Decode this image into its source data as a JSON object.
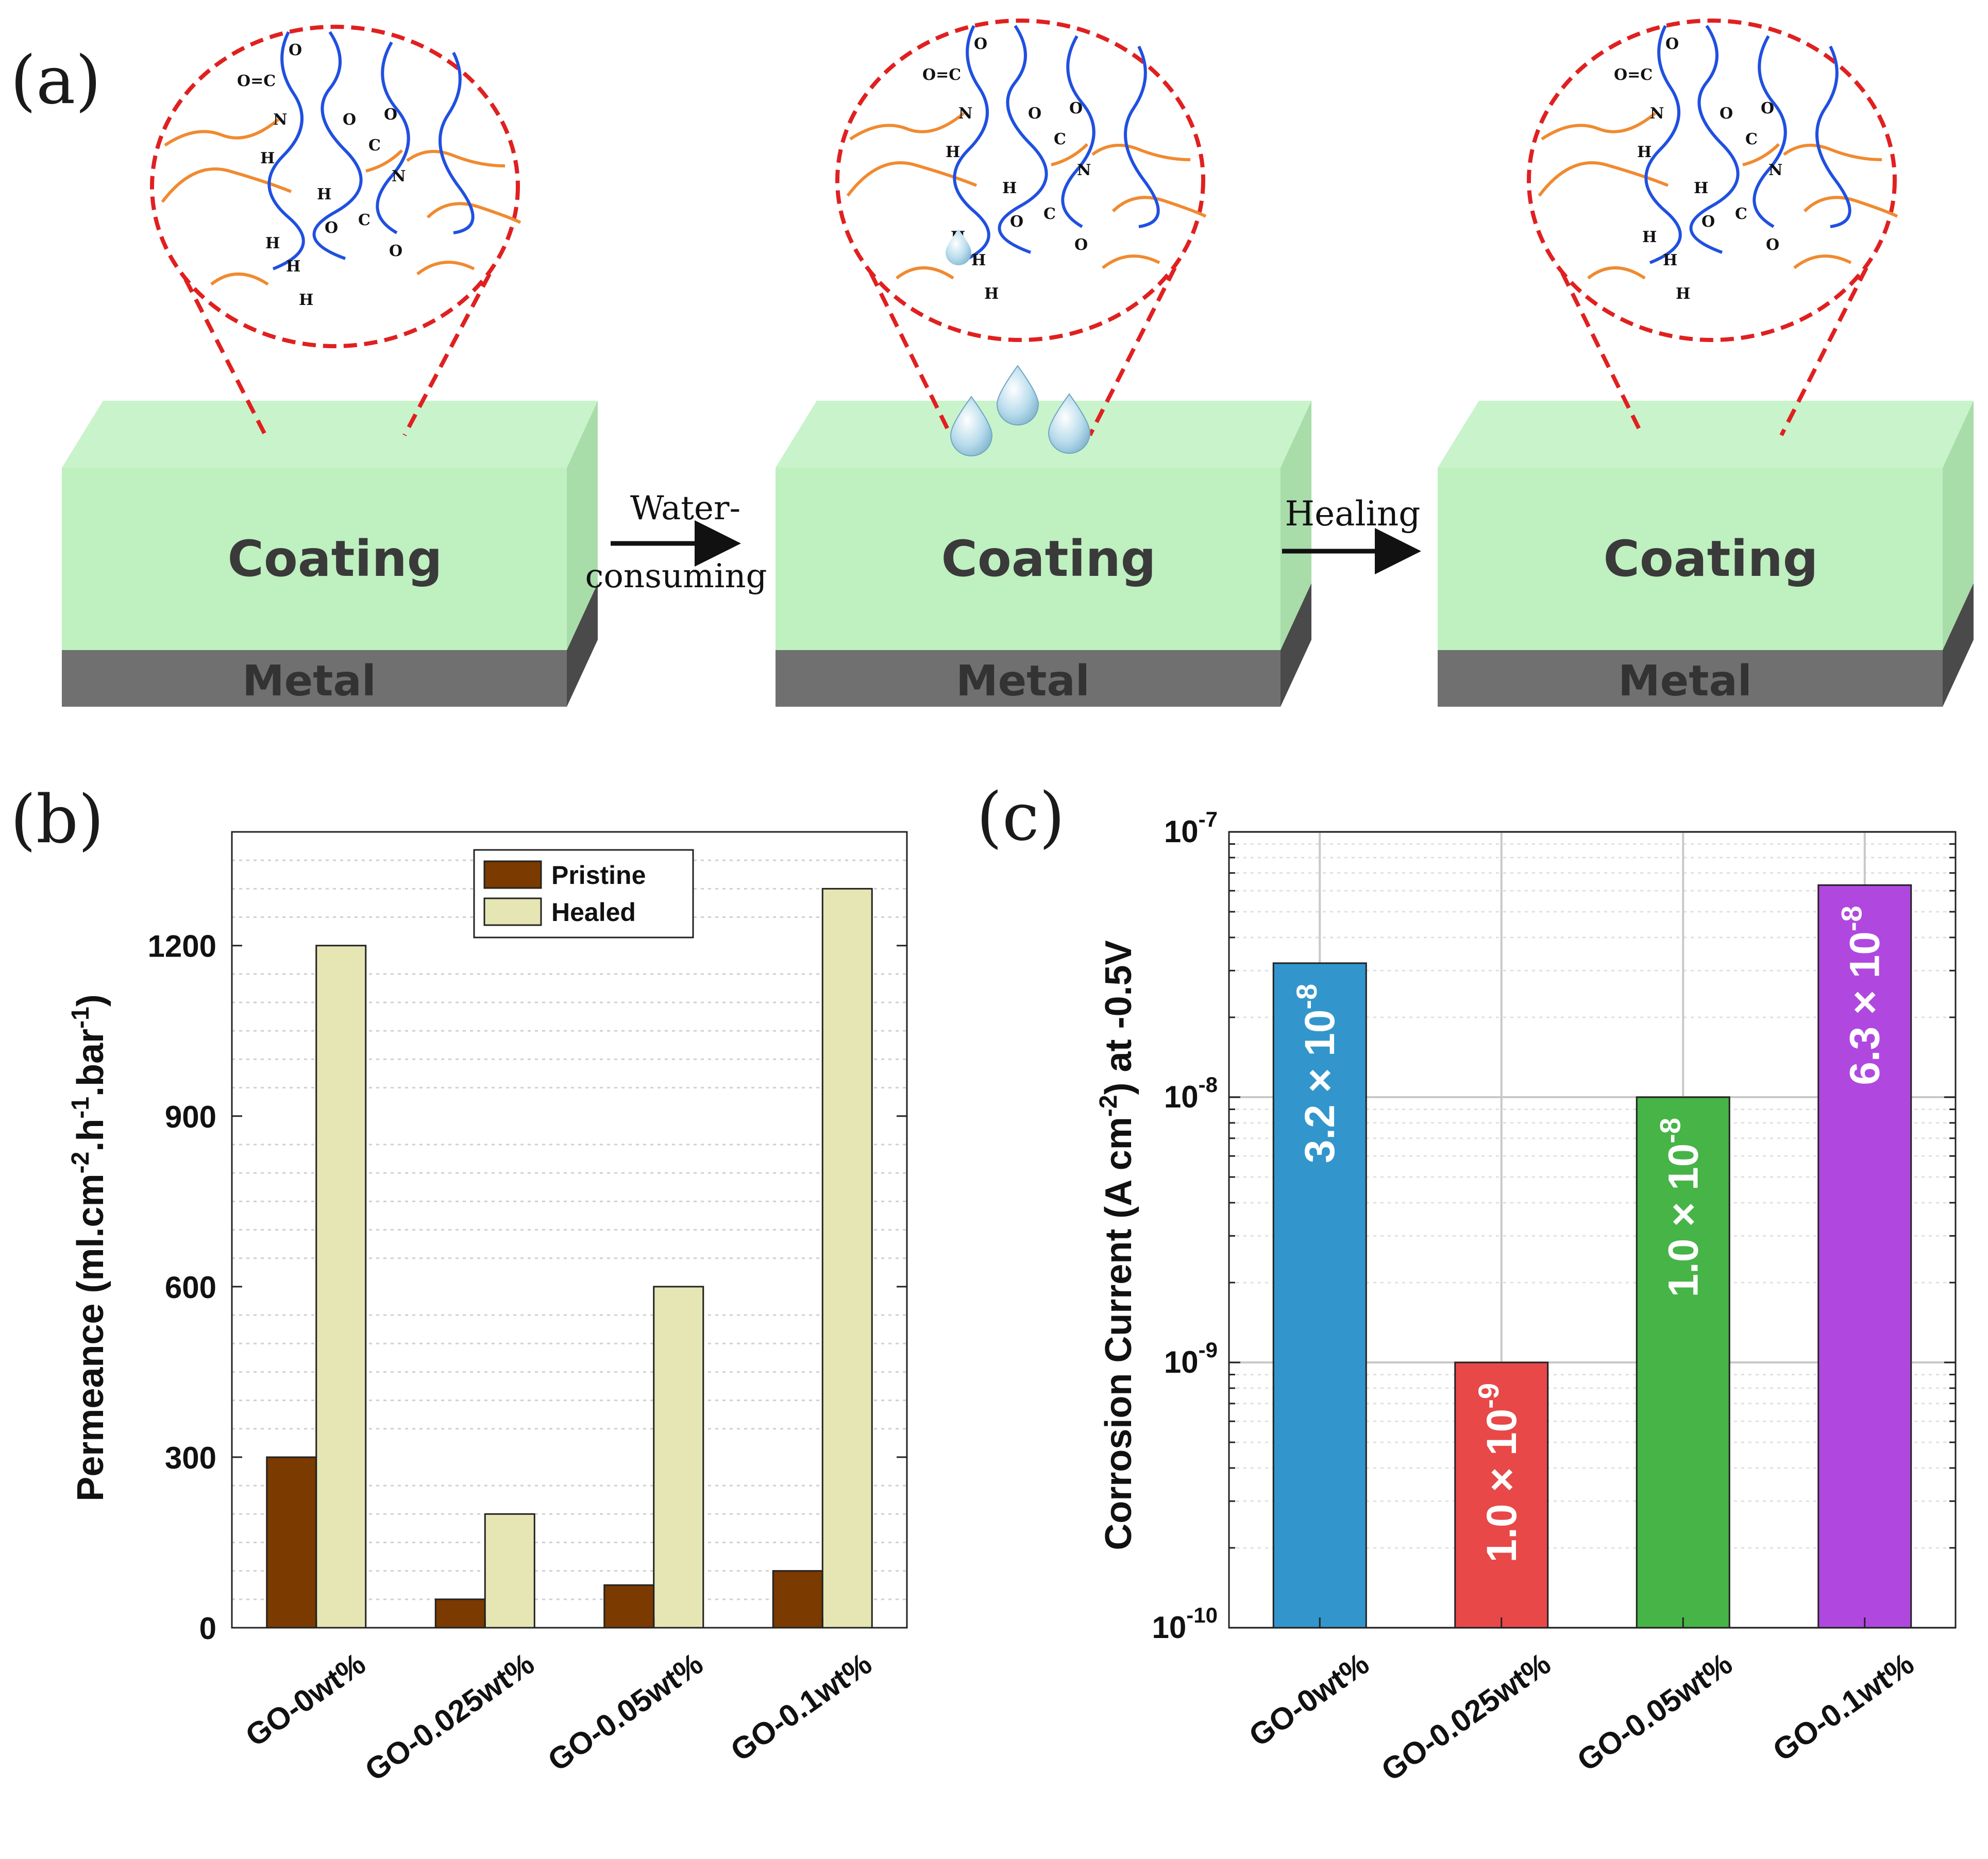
{
  "panels": {
    "a": "(a)",
    "b": "(b)",
    "c": "(c)"
  },
  "schematic": {
    "coating_label": "Coating",
    "metal_label": "Metal",
    "arrow1_line1": "Water-",
    "arrow1_line2": "consuming",
    "arrow2_label": "Healing",
    "colors": {
      "coating": "#bff0c0",
      "metal": "#707070",
      "circle": "#e02020",
      "chain_orange": "#f08a30",
      "chain_blue": "#2050e0"
    }
  },
  "chart_data": [
    {
      "type": "bar",
      "panel": "b",
      "categories": [
        "GO-0wt%",
        "GO-0.025wt%",
        "GO-0.05wt%",
        "GO-0.1wt%"
      ],
      "series": [
        {
          "name": "Pristine",
          "color": "#7a3a00",
          "values": [
            300,
            50,
            75,
            100
          ]
        },
        {
          "name": "Healed",
          "color": "#e6e6b4",
          "values": [
            1200,
            200,
            600,
            1300
          ]
        }
      ],
      "ylabel": "Permeance (ml.cm-2.h-1.bar-1)",
      "ylabel_parts": [
        "Permeance (ml.cm",
        "-2",
        ".h",
        "-1",
        ".bar",
        "-1",
        ")"
      ],
      "ylim": [
        0,
        1400
      ],
      "yticks": [
        0,
        300,
        600,
        900,
        1200
      ],
      "ytick_labels": [
        "0",
        "300",
        "600",
        "900",
        "1200"
      ],
      "legend": "top-center",
      "grid": "minor-dotted"
    },
    {
      "type": "bar",
      "panel": "c",
      "yscale": "log",
      "categories": [
        "GO-0wt%",
        "GO-0.025wt%",
        "GO-0.05wt%",
        "GO-0.1wt%"
      ],
      "values": [
        3.2e-08,
        1e-09,
        1e-08,
        6.3e-08
      ],
      "colors": [
        "#3296cc",
        "#e84848",
        "#46b446",
        "#b048e0"
      ],
      "value_labels": [
        {
          "mant": "3.2 × 10",
          "exp": "-8"
        },
        {
          "mant": "1.0 × 10",
          "exp": "-9"
        },
        {
          "mant": "1.0 × 10",
          "exp": "-8"
        },
        {
          "mant": "6.3 × 10",
          "exp": "-8"
        }
      ],
      "ylabel": "Corrosion Current (A cm-2) at -0.5V",
      "ylabel_parts": [
        "Corrosion Current (A cm",
        "-2",
        ") at -0.5V"
      ],
      "ylim": [
        1e-10,
        1e-07
      ],
      "yticks": [
        1e-10,
        1e-09,
        1e-08,
        1e-07
      ],
      "ytick_labels": [
        {
          "base": "10",
          "exp": "-10"
        },
        {
          "base": "10",
          "exp": "-9"
        },
        {
          "base": "10",
          "exp": "-8"
        },
        {
          "base": "10",
          "exp": "-7"
        }
      ],
      "grid": "major-and-minor"
    }
  ]
}
